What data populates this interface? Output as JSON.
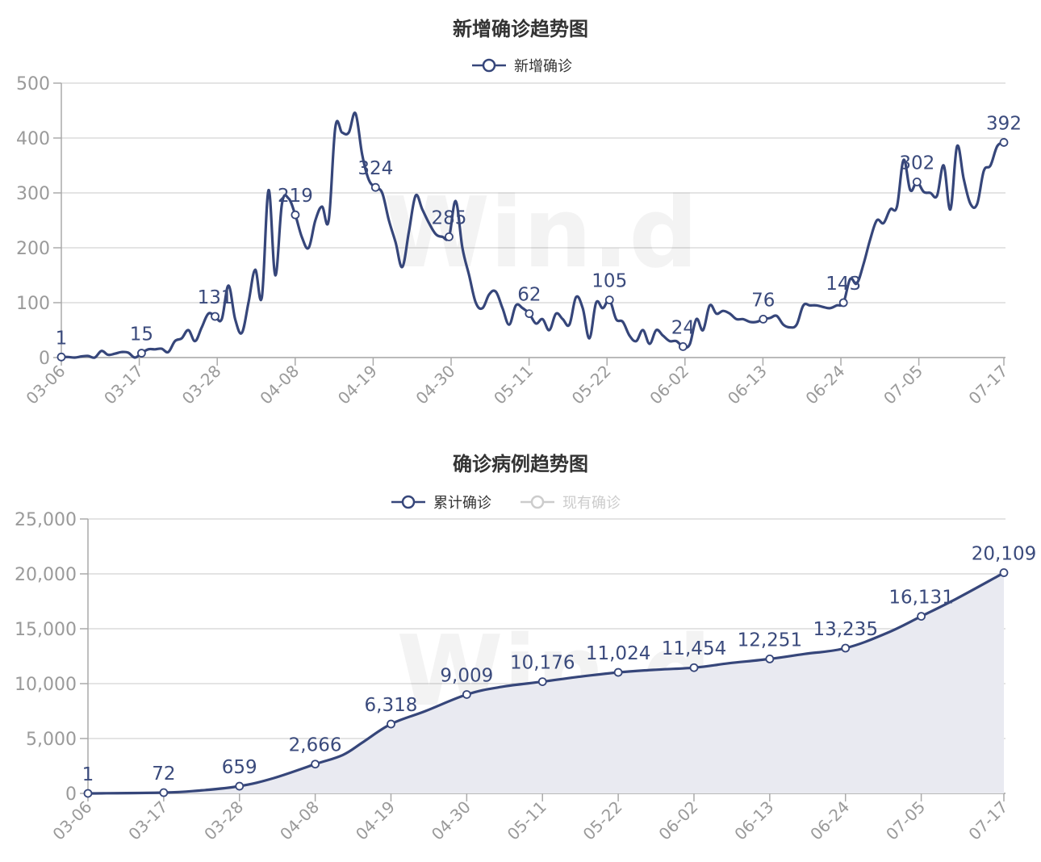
{
  "colors": {
    "series": "#36467a",
    "area": "#e9eaf1",
    "inactive": "#cccccc"
  },
  "watermark": "Win.d",
  "chart_data": [
    {
      "type": "line",
      "title": "新增确诊趋势图",
      "legend": [
        {
          "name": "新增确诊",
          "active": true
        }
      ],
      "x_ticks": [
        "03-06",
        "03-17",
        "03-28",
        "04-08",
        "04-19",
        "04-30",
        "05-11",
        "05-22",
        "06-02",
        "06-13",
        "06-24",
        "07-05",
        "07-17"
      ],
      "x_start": "03-06",
      "ylim": [
        0,
        500
      ],
      "y_ticks": [
        "0",
        "100",
        "200",
        "300",
        "400",
        "500"
      ],
      "grid": true,
      "series": [
        {
          "name": "新增确诊",
          "values": [
            1,
            1,
            0,
            2,
            3,
            0,
            12,
            5,
            7,
            10,
            9,
            0,
            8,
            15,
            15,
            16,
            10,
            30,
            35,
            50,
            30,
            55,
            80,
            75,
            70,
            131,
            70,
            45,
            100,
            160,
            110,
            305,
            150,
            280,
            290,
            260,
            219,
            200,
            250,
            275,
            250,
            420,
            410,
            410,
            445,
            370,
            324,
            310,
            300,
            250,
            210,
            165,
            230,
            295,
            270,
            245,
            225,
            220,
            220,
            285,
            200,
            150,
            100,
            90,
            115,
            120,
            90,
            60,
            95,
            90,
            80,
            62,
            70,
            50,
            80,
            70,
            60,
            110,
            90,
            35,
            100,
            90,
            105,
            70,
            65,
            40,
            30,
            50,
            25,
            50,
            40,
            30,
            30,
            20,
            24,
            70,
            50,
            95,
            80,
            85,
            80,
            70,
            70,
            65,
            65,
            70,
            72,
            76,
            60,
            55,
            60,
            95,
            95,
            95,
            92,
            90,
            95,
            100,
            143,
            135,
            170,
            215,
            250,
            245,
            270,
            275,
            360,
            305,
            320,
            302,
            300,
            295,
            350,
            270,
            385,
            325,
            280,
            280,
            340,
            350,
            385,
            392
          ]
        }
      ],
      "data_labels": [
        {
          "x": "03-06",
          "label": "1"
        },
        {
          "x": "03-17",
          "label": "15"
        },
        {
          "x": "03-28",
          "label": "131"
        },
        {
          "x": "04-08",
          "label": "219"
        },
        {
          "x": "04-19",
          "label": "324"
        },
        {
          "x": "04-30",
          "label": "285"
        },
        {
          "x": "05-11",
          "label": "62"
        },
        {
          "x": "05-22",
          "label": "105"
        },
        {
          "x": "06-02",
          "label": "24"
        },
        {
          "x": "06-13",
          "label": "76"
        },
        {
          "x": "06-24",
          "label": "143"
        },
        {
          "x": "07-05",
          "label": "302"
        },
        {
          "x": "07-17",
          "label": "392"
        }
      ]
    },
    {
      "type": "area",
      "title": "确诊病例趋势图",
      "legend": [
        {
          "name": "累计确诊",
          "active": true
        },
        {
          "name": "现有确诊",
          "active": false
        }
      ],
      "x_ticks": [
        "03-06",
        "03-17",
        "03-28",
        "04-08",
        "04-19",
        "04-30",
        "05-11",
        "05-22",
        "06-02",
        "06-13",
        "06-24",
        "07-05",
        "07-17"
      ],
      "x_start": "03-06",
      "ylim": [
        0,
        25000
      ],
      "y_ticks": [
        "0",
        "5,000",
        "10,000",
        "15,000",
        "20,000",
        "25,000"
      ],
      "grid": true,
      "series": [
        {
          "name": "累计确诊",
          "points": [
            {
              "x": "03-06",
              "y": 1
            },
            {
              "x": "03-17",
              "y": 72
            },
            {
              "x": "03-22",
              "y": 250
            },
            {
              "x": "03-28",
              "y": 659
            },
            {
              "x": "04-02",
              "y": 1400
            },
            {
              "x": "04-08",
              "y": 2666
            },
            {
              "x": "04-12",
              "y": 3500
            },
            {
              "x": "04-15",
              "y": 4700
            },
            {
              "x": "04-19",
              "y": 6318
            },
            {
              "x": "04-24",
              "y": 7500
            },
            {
              "x": "04-30",
              "y": 9009
            },
            {
              "x": "05-05",
              "y": 9700
            },
            {
              "x": "05-11",
              "y": 10176
            },
            {
              "x": "05-16",
              "y": 10600
            },
            {
              "x": "05-22",
              "y": 11024
            },
            {
              "x": "05-27",
              "y": 11250
            },
            {
              "x": "06-02",
              "y": 11454
            },
            {
              "x": "06-07",
              "y": 11850
            },
            {
              "x": "06-13",
              "y": 12251
            },
            {
              "x": "06-18",
              "y": 12700
            },
            {
              "x": "06-24",
              "y": 13235
            },
            {
              "x": "06-30",
              "y": 14600
            },
            {
              "x": "07-05",
              "y": 16131
            },
            {
              "x": "07-10",
              "y": 17700
            },
            {
              "x": "07-16",
              "y": 19750
            },
            {
              "x": "07-17",
              "y": 20109
            }
          ]
        }
      ],
      "data_labels": [
        {
          "x": "03-06",
          "label": "1"
        },
        {
          "x": "03-17",
          "label": "72"
        },
        {
          "x": "03-28",
          "label": "659"
        },
        {
          "x": "04-08",
          "label": "2,666"
        },
        {
          "x": "04-19",
          "label": "6,318"
        },
        {
          "x": "04-30",
          "label": "9,009"
        },
        {
          "x": "05-11",
          "label": "10,176"
        },
        {
          "x": "05-22",
          "label": "11,024"
        },
        {
          "x": "06-02",
          "label": "11,454"
        },
        {
          "x": "06-13",
          "label": "12,251"
        },
        {
          "x": "06-24",
          "label": "13,235"
        },
        {
          "x": "07-05",
          "label": "16,131"
        },
        {
          "x": "07-17",
          "label": "20,109"
        }
      ]
    }
  ]
}
